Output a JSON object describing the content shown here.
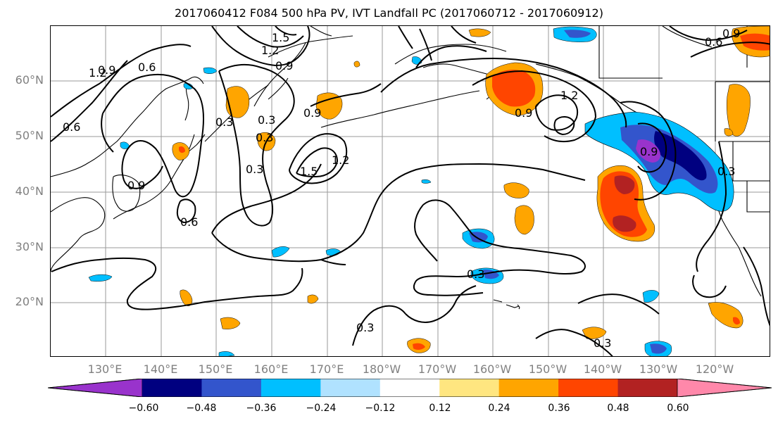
{
  "title": "2017060412 F084 500 hPa PV, IVT Landfall PC (2017060712 - 2017060912)",
  "lat_labels": [
    "60°N",
    "50°N",
    "40°N",
    "30°N",
    "20°N"
  ],
  "lon_labels": [
    "130°E",
    "140°E",
    "150°E",
    "160°E",
    "170°E",
    "180°W",
    "170°W",
    "160°W",
    "150°W",
    "140°W",
    "130°W",
    "120°W"
  ],
  "contour_labels": [
    "1.5",
    "1.2",
    "0.9",
    "0.6",
    "0.3",
    "1.2",
    "0.9",
    "0.6",
    "1.5",
    "1.2",
    "0.9",
    "0.6",
    "0.3",
    "0.9",
    "0.3",
    "0.9",
    "0.6",
    "0.3",
    "0.3",
    "0.3",
    "0.3",
    "0.9",
    "0.3",
    "1.2",
    "0.9"
  ],
  "colorbar": {
    "colors": [
      "#9933cc",
      "#000080",
      "#3355cc",
      "#00bfff",
      "#b0e2ff",
      "#ffffff",
      "#ffe680",
      "#ffa500",
      "#ff4500",
      "#b22222",
      "#ff88aa"
    ],
    "ticks": [
      "−0.60",
      "−0.48",
      "−0.36",
      "−0.24",
      "−0.12",
      "0.12",
      "0.24",
      "0.36",
      "0.48",
      "0.60"
    ]
  }
}
